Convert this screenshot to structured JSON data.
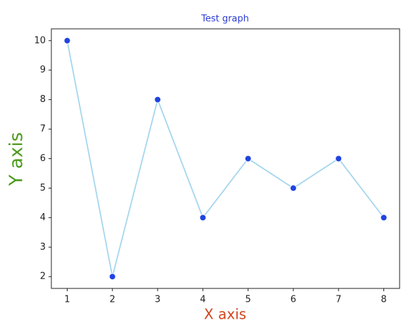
{
  "chart_data": {
    "type": "line",
    "title": "Test graph",
    "x_label": "X axis",
    "y_label": "Y axis",
    "x": [
      1,
      2,
      3,
      4,
      5,
      6,
      7,
      8
    ],
    "values": [
      10,
      2,
      8,
      4,
      6,
      5,
      6,
      4
    ],
    "color": "#a6d6ee",
    "marker_color": "#1f44e0",
    "title_color": "#2b3bd6",
    "x_label_color": "#d2441e",
    "y_label_color": "#4b9a1c",
    "xlim": [
      0.65,
      8.35
    ],
    "ylim": [
      1.6,
      10.4
    ],
    "xticks": [
      1,
      2,
      3,
      4,
      5,
      6,
      7,
      8
    ],
    "yticks": [
      2,
      3,
      4,
      5,
      6,
      7,
      8,
      9,
      10
    ],
    "grid": false
  }
}
